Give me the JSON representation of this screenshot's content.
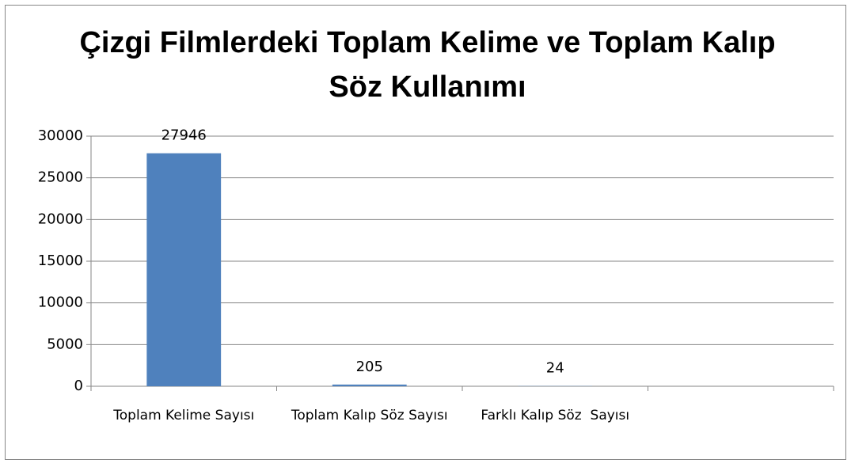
{
  "chart_data": {
    "type": "bar",
    "title": "Çizgi Filmlerdeki Toplam Kelime ve Toplam Kalıp Söz Kullanımı",
    "categories": [
      "Toplam Kelime Sayısı",
      "Toplam Kalıp Söz Sayısı",
      "Farklı Kalıp Söz  Sayısı",
      null
    ],
    "values": [
      27946,
      205,
      24,
      null
    ],
    "color": "#4f81bd",
    "ylim": [
      0,
      30000
    ],
    "yticks": [
      0,
      5000,
      10000,
      15000,
      20000,
      25000,
      30000
    ],
    "grid": true,
    "data_labels": true
  }
}
